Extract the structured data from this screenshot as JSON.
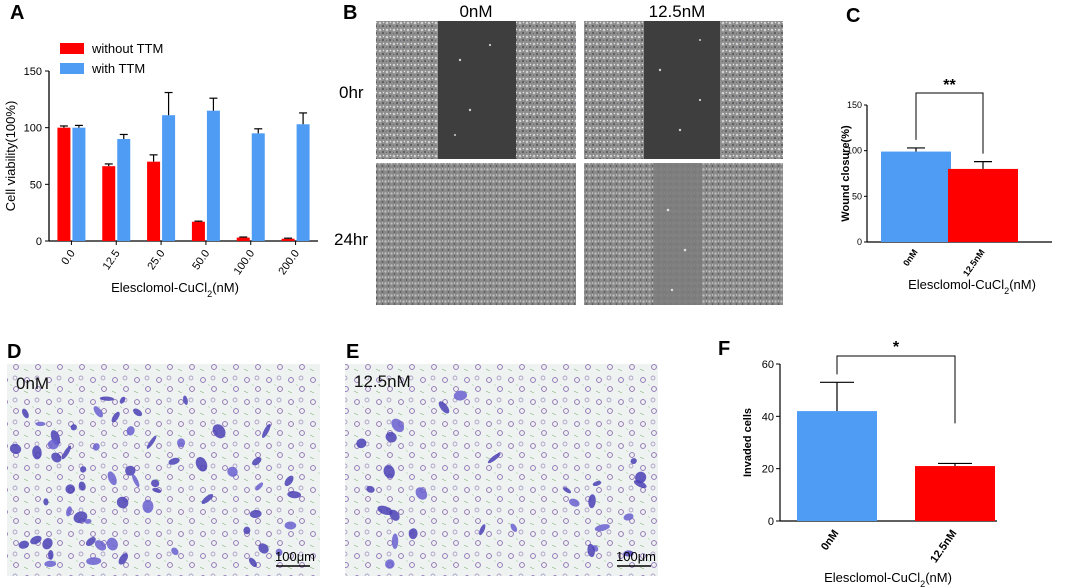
{
  "panels": {
    "a": "A",
    "b": "B",
    "c": "C",
    "d": "D",
    "e": "E",
    "f": "F"
  },
  "colors": {
    "red": "#ff0000",
    "blue": "#4f9cf5",
    "scratch_dark": "#3e3e3e",
    "cell_bg": "#9a9a9a",
    "micro_bg": "#eef3f1",
    "violet": "#5a4fc4"
  },
  "chart_data": [
    {
      "id": "A",
      "type": "bar",
      "title": "",
      "xlabel": "Elesclomol-CuCl",
      "xlabel_sub": "2",
      "xlabel_suffix": "(nM)",
      "ylabel": "Cell viability(100%)",
      "ylim": [
        0,
        150
      ],
      "yticks": [
        "0",
        "50",
        "100",
        "150"
      ],
      "categories": [
        "0.0",
        "12.5",
        "25.0",
        "50.0",
        "100.0",
        "200.0"
      ],
      "legend_placement": "top-left",
      "series": [
        {
          "name": "without TTM",
          "color": "#ff0000",
          "values": [
            100,
            66,
            70,
            17,
            3,
            2
          ],
          "errors": [
            1.5,
            2,
            6,
            0.5,
            0.5,
            0.5
          ]
        },
        {
          "name": "with TTM",
          "color": "#4f9cf5",
          "values": [
            100,
            90,
            111,
            115,
            95,
            103
          ],
          "errors": [
            2,
            4,
            20,
            11,
            4,
            10
          ]
        }
      ]
    },
    {
      "id": "C",
      "type": "bar",
      "title": "",
      "xlabel": "Elesclomol-CuCl",
      "xlabel_sub": "2",
      "xlabel_suffix": "(nM)",
      "ylabel": "Wound closure(%)",
      "ylim": [
        0,
        150
      ],
      "yticks": [
        "0",
        "50",
        "100",
        "150"
      ],
      "categories": [
        "0nM",
        "12.5nM"
      ],
      "colors": [
        "#4f9cf5",
        "#ff0000"
      ],
      "values": [
        99,
        80
      ],
      "errors": [
        4,
        8
      ],
      "significance": "**"
    },
    {
      "id": "F",
      "type": "bar",
      "title": "",
      "xlabel": "Elesclomol-CuCl",
      "xlabel_sub": "2",
      "xlabel_suffix": "(nM)",
      "ylabel": "Invaded cells",
      "ylim": [
        0,
        60
      ],
      "yticks": [
        "0",
        "20",
        "40",
        "60"
      ],
      "categories": [
        "0nM",
        "12.5nM"
      ],
      "colors": [
        "#4f9cf5",
        "#ff0000"
      ],
      "values": [
        42,
        21
      ],
      "errors": [
        11,
        1
      ],
      "significance": "*"
    }
  ],
  "wound_assay": {
    "columns": [
      "0nM",
      "12.5nM"
    ],
    "rows": [
      "0hr",
      "24hr"
    ]
  },
  "transwell": {
    "d_label": "0nM",
    "e_label": "12.5nM",
    "scale_d": "100μm",
    "scale_e": "100μm"
  }
}
